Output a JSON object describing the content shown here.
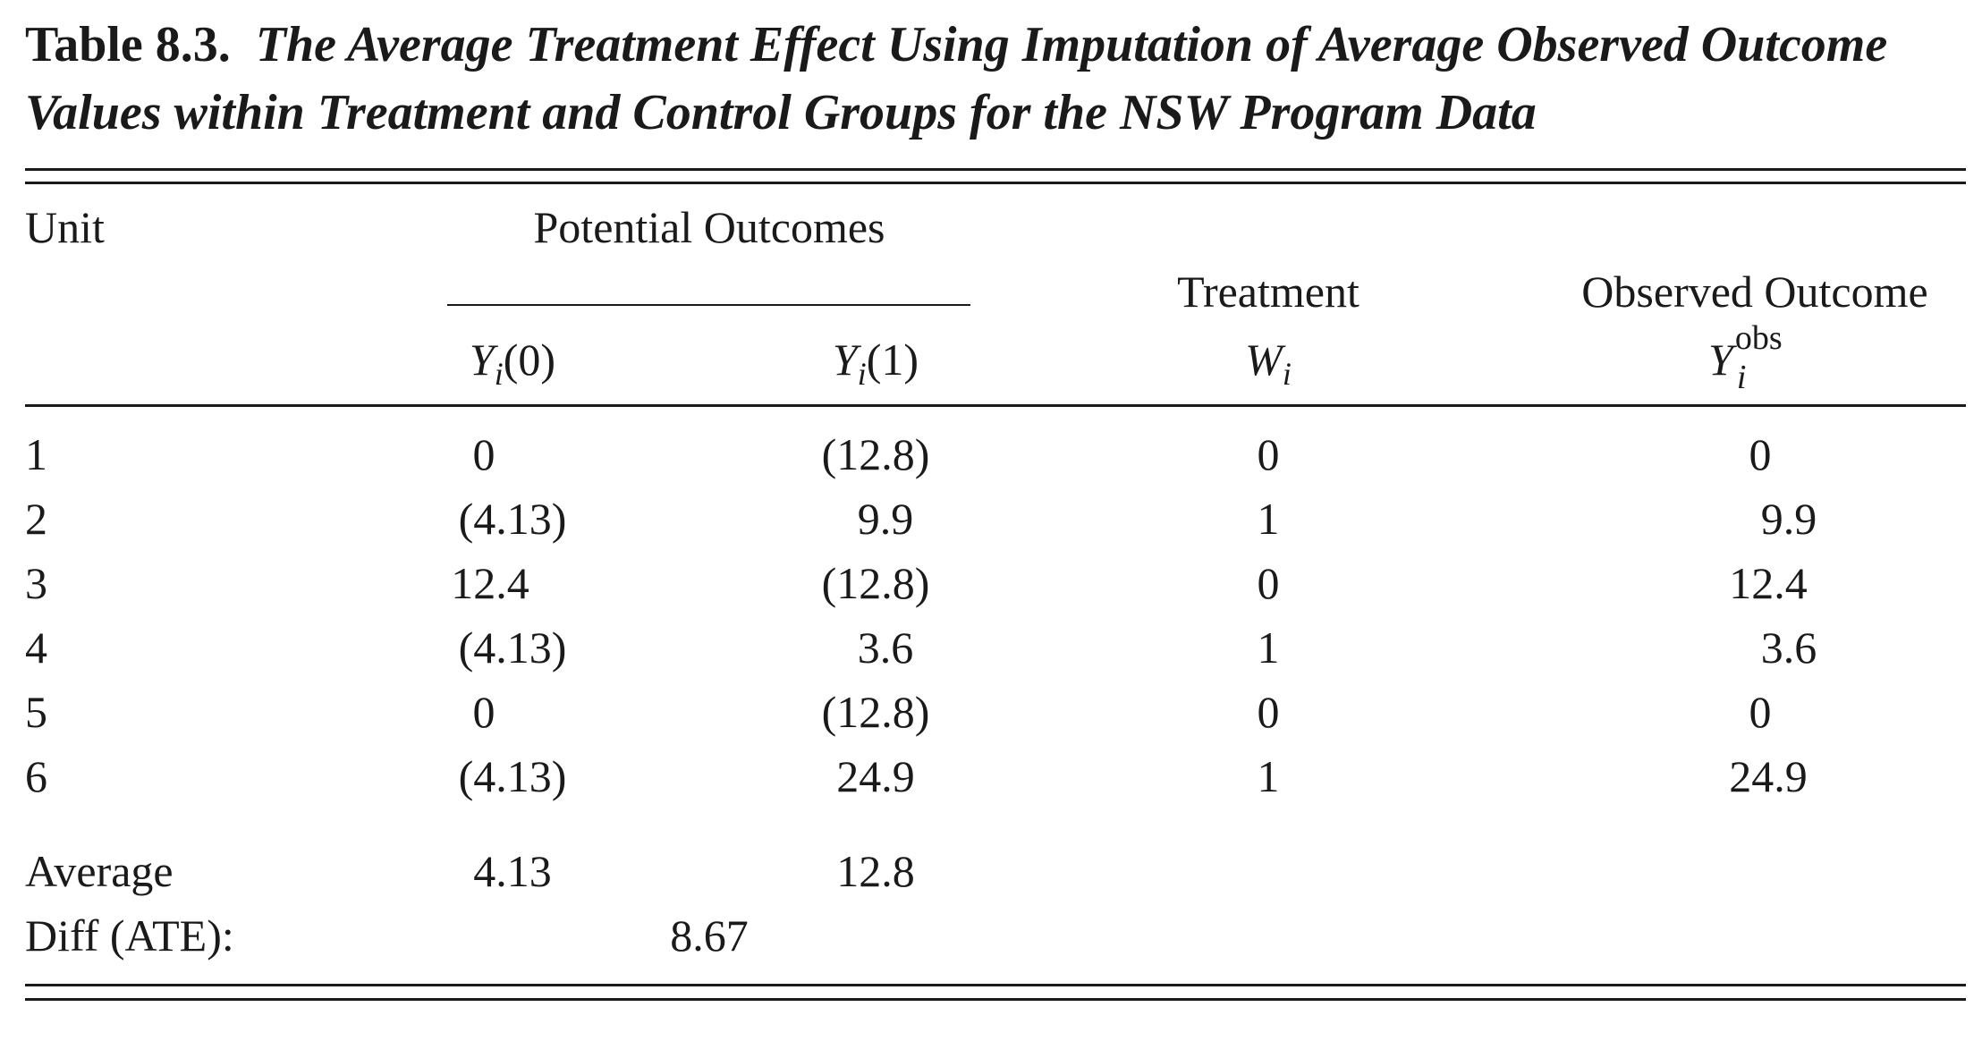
{
  "title": {
    "label": "Table 8.3.",
    "caption_line1": "The Average Treatment Effect Using Imputation of Average Observed Outcome",
    "caption_line2": "Values within Treatment and Control Groups for the NSW Program Data"
  },
  "headers": {
    "unit": "Unit",
    "potential_outcomes": "Potential Outcomes",
    "y0": {
      "var": "Y",
      "sub": "i",
      "arg": "(0)"
    },
    "y1": {
      "var": "Y",
      "sub": "i",
      "arg": "(1)"
    },
    "treatment": "Treatment",
    "treatment_symbol": {
      "var": "W",
      "sub": "i"
    },
    "observed_outcome": "Observed Outcome",
    "observed_symbol": {
      "var": "Y",
      "sub": "i",
      "sup": "obs"
    }
  },
  "rows": [
    {
      "unit": "1",
      "y0": "0",
      "y1": "(12.8)",
      "w": "0",
      "yobs": "0"
    },
    {
      "unit": "2",
      "y0": "(4.13)",
      "y1": "9.9",
      "w": "1",
      "yobs": "9.9"
    },
    {
      "unit": "3",
      "y0": "12.4",
      "y1": "(12.8)",
      "w": "0",
      "yobs": "12.4"
    },
    {
      "unit": "4",
      "y0": "(4.13)",
      "y1": "3.6",
      "w": "1",
      "yobs": "3.6"
    },
    {
      "unit": "5",
      "y0": "0",
      "y1": "(12.8)",
      "w": "0",
      "yobs": "0"
    },
    {
      "unit": "6",
      "y0": "(4.13)",
      "y1": "24.9",
      "w": "1",
      "yobs": "24.9"
    }
  ],
  "summary": {
    "average_label": "Average",
    "average_y0": "4.13",
    "average_y1": "12.8",
    "diff_label": "Diff (ATE):",
    "diff_value": "8.67"
  }
}
